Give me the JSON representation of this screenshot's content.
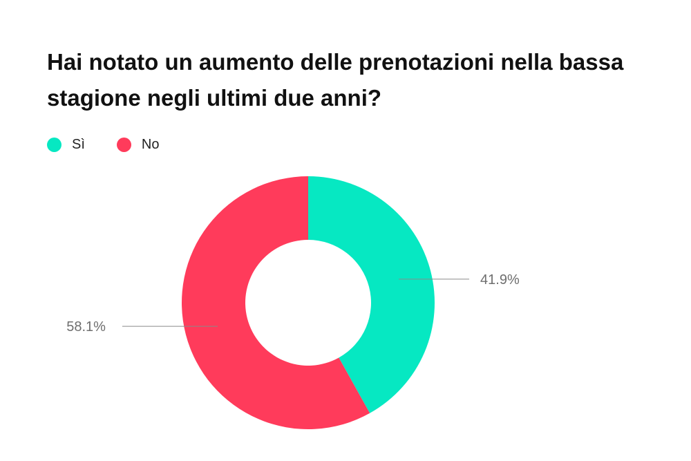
{
  "chart_data": {
    "type": "pie",
    "title": "Hai notato un aumento delle prenotazioni nella bassa stagione negli ultimi due anni?",
    "categories": [
      "Sì",
      "No"
    ],
    "values": [
      41.9,
      58.1
    ],
    "value_labels": [
      "41.9%",
      "58.1%"
    ],
    "colors": [
      "#06e8c2",
      "#ff3b5b"
    ],
    "donut": true,
    "legend_position": "top-left"
  }
}
